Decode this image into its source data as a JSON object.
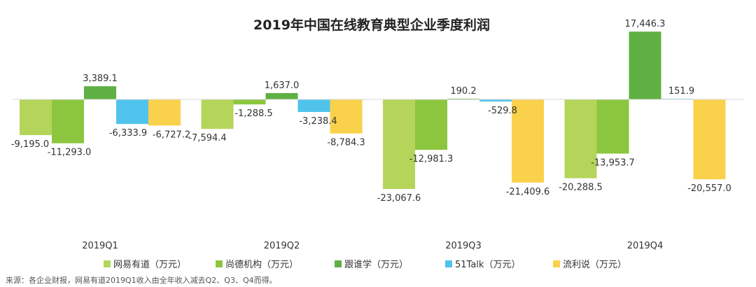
{
  "chart_data": {
    "type": "bar",
    "title": "2019年中国在线教育典型企业季度利润",
    "categories": [
      "2019Q1",
      "2019Q2",
      "2019Q3",
      "2019Q4"
    ],
    "ylim": [
      -25000,
      18000
    ],
    "series": [
      {
        "name": "网易有道（万元）",
        "color": "#b5d55a",
        "values": [
          -9195.0,
          -7594.4,
          -23067.6,
          -20288.5
        ],
        "labels": [
          "-9,195.0",
          "-7,594.4",
          "-23,067.6",
          "-20,288.5"
        ]
      },
      {
        "name": "尚德机构（万元）",
        "color": "#8cc63f",
        "values": [
          -11293.0,
          -1288.5,
          -12981.3,
          -13953.7
        ],
        "labels": [
          "-11,293.0",
          "-1,288.5",
          "-12,981.3",
          "-13,953.7"
        ]
      },
      {
        "name": "跟谁学（万元）",
        "color": "#5fb043",
        "values": [
          3389.1,
          1637.0,
          190.2,
          17446.3
        ],
        "labels": [
          "3,389.1",
          "1,637.0",
          "190.2",
          "17,446.3"
        ]
      },
      {
        "name": "51Talk（万元）",
        "color": "#4fc3ec",
        "values": [
          -6333.9,
          -3238.4,
          -529.8,
          151.9
        ],
        "labels": [
          "-6,333.9",
          "-3,238.4",
          "-529.8",
          "151.9"
        ]
      },
      {
        "name": "流利说（万元）",
        "color": "#fad14b",
        "values": [
          -6727.2,
          -8784.3,
          -21409.6,
          -20557.0
        ],
        "labels": [
          "-6,727.2",
          "-8,784.3",
          "-21,409.6",
          "-20,557.0"
        ]
      }
    ]
  },
  "source_note": "来源：各企业财报，网易有道2019Q1收入由全年收入减去Q2、Q3、Q4而得。"
}
